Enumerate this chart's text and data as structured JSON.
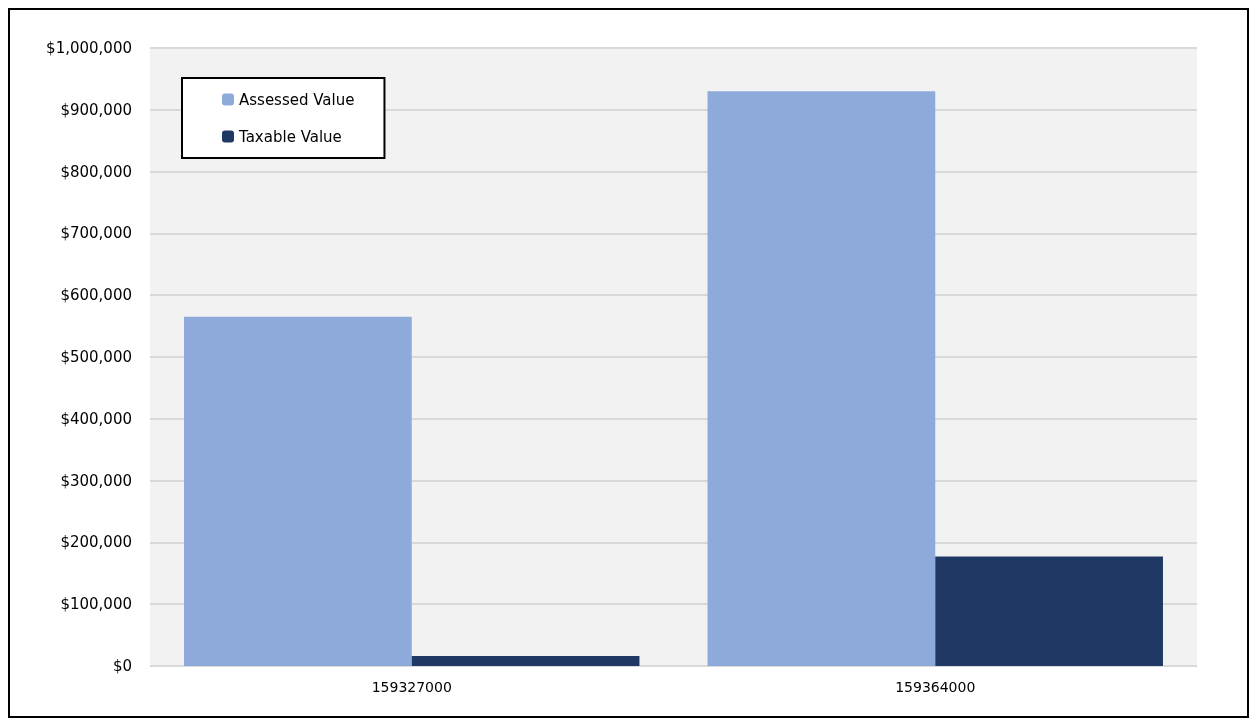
{
  "chart_data": {
    "type": "bar",
    "categories": [
      "159327000",
      "159364000"
    ],
    "series": [
      {
        "name": "Assessed Value",
        "color": "#8eaadb",
        "values": [
          565000,
          930000
        ]
      },
      {
        "name": "Taxable Value",
        "color": "#203864",
        "values": [
          16000,
          177000
        ]
      }
    ],
    "ylim": [
      0,
      1000000
    ],
    "yticks": [
      {
        "value": 0,
        "label": "$0"
      },
      {
        "value": 100000,
        "label": "$100,000"
      },
      {
        "value": 200000,
        "label": "$200,000"
      },
      {
        "value": 300000,
        "label": "$300,000"
      },
      {
        "value": 400000,
        "label": "$400,000"
      },
      {
        "value": 500000,
        "label": "$500,000"
      },
      {
        "value": 600000,
        "label": "$600,000"
      },
      {
        "value": 700000,
        "label": "$700,000"
      },
      {
        "value": 800000,
        "label": "$800,000"
      },
      {
        "value": 900000,
        "label": "$900,000"
      },
      {
        "value": 1000000,
        "label": "$1,000,000"
      }
    ],
    "grid": "y",
    "legend": "top left"
  }
}
